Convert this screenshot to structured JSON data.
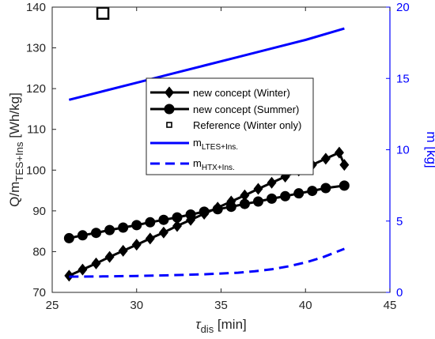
{
  "chart_data": {
    "type": "line",
    "xlabel": {
      "symbol": "τ",
      "sub": "dis",
      "unit": " [min]"
    },
    "ylabel_left": {
      "main": "Q/m",
      "sub": "TES+Ins",
      "unit": " [Wh/kg]"
    },
    "ylabel_right": "m [kg]",
    "xlim": [
      25,
      45
    ],
    "ylim_left": [
      70,
      140
    ],
    "ylim_right": [
      0,
      20
    ],
    "x_ticks": [
      25,
      30,
      35,
      40,
      45
    ],
    "y_left_ticks": [
      70,
      80,
      90,
      100,
      110,
      120,
      130,
      140
    ],
    "y_right_ticks": [
      0,
      5,
      10,
      15,
      20
    ],
    "grid": false,
    "legend_position": "center",
    "colors": {
      "black": "#000000",
      "blue": "#0000ff"
    },
    "series": [
      {
        "name": "new concept (Winter)",
        "axis": "left",
        "marker": "diamond",
        "line": "solid",
        "color": "#000000",
        "x": [
          26.0,
          26.8,
          27.6,
          28.4,
          29.2,
          30.0,
          30.8,
          31.6,
          32.4,
          33.2,
          34.0,
          34.8,
          35.6,
          36.4,
          37.2,
          38.0,
          38.8,
          39.6,
          40.4,
          41.2,
          42.0,
          42.3
        ],
        "y": [
          74.1,
          75.6,
          77.1,
          78.7,
          80.2,
          81.7,
          83.2,
          84.7,
          86.3,
          87.8,
          89.3,
          90.8,
          92.3,
          93.8,
          95.4,
          96.9,
          98.4,
          99.9,
          101.3,
          102.8,
          104.3,
          101.3
        ]
      },
      {
        "name": "new concept (Summer)",
        "axis": "left",
        "marker": "circle",
        "line": "solid",
        "color": "#000000",
        "x": [
          26.0,
          26.8,
          27.6,
          28.4,
          29.2,
          30.0,
          30.8,
          31.6,
          32.4,
          33.2,
          34.0,
          34.8,
          35.6,
          36.4,
          37.2,
          38.0,
          38.8,
          39.6,
          40.4,
          41.2,
          42.3
        ],
        "y": [
          83.3,
          84.0,
          84.6,
          85.3,
          85.9,
          86.5,
          87.2,
          87.8,
          88.4,
          89.1,
          89.8,
          90.4,
          91.0,
          91.7,
          92.3,
          93.0,
          93.6,
          94.3,
          94.9,
          95.6,
          96.2
        ]
      },
      {
        "name": "Reference (Winter only)",
        "axis": "left",
        "marker": "square",
        "line": "none",
        "color": "#000000",
        "x": [
          28.0
        ],
        "y": [
          138.5
        ]
      },
      {
        "name": "m_LTES+Ins.",
        "legend_main": "m",
        "legend_sub": "LTES+Ins.",
        "axis": "right",
        "marker": "none",
        "line": "solid",
        "color": "#0000ff",
        "x": [
          26.0,
          28.0,
          30.0,
          32.0,
          34.0,
          36.0,
          38.0,
          40.0,
          42.3
        ],
        "y": [
          13.5,
          14.1,
          14.7,
          15.3,
          15.9,
          16.5,
          17.1,
          17.7,
          18.5
        ]
      },
      {
        "name": "m_HTX+Ins.",
        "legend_main": "m",
        "legend_sub": "HTX+Ins.",
        "axis": "right",
        "marker": "none",
        "line": "dashed",
        "color": "#0000ff",
        "x": [
          26.0,
          28.0,
          30.0,
          32.0,
          34.0,
          36.0,
          37.0,
          38.0,
          39.0,
          40.0,
          41.0,
          42.3
        ],
        "y": [
          1.1,
          1.12,
          1.15,
          1.2,
          1.27,
          1.38,
          1.48,
          1.62,
          1.83,
          2.1,
          2.45,
          3.05
        ]
      }
    ]
  }
}
